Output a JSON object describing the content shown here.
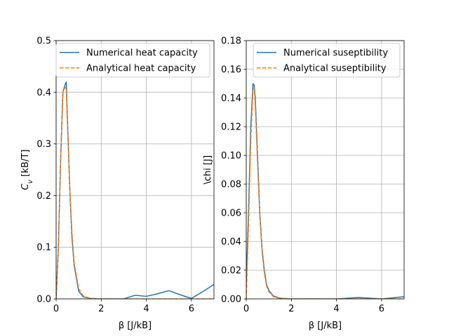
{
  "chart_data": [
    {
      "type": "line",
      "xlabel": "β [J/k_B]",
      "ylabel": "C_v [k_B/T]",
      "xlim": [
        0,
        7
      ],
      "ylim": [
        0,
        0.5
      ],
      "xticks": [
        0,
        2,
        4,
        6
      ],
      "xtick_labels": [
        "0",
        "2",
        "4",
        "6"
      ],
      "yticks": [
        0,
        0.1,
        0.2,
        0.3,
        0.4,
        0.5
      ],
      "ytick_labels": [
        "0.0",
        "0.1",
        "0.2",
        "0.3",
        "0.4",
        "0.5"
      ],
      "grid": true,
      "legend_position": "top-right",
      "series": [
        {
          "name": "Numerical heat capacity",
          "color": "#1f77b4",
          "style": "solid",
          "x": [
            0,
            0.1,
            0.2,
            0.3,
            0.4,
            0.45,
            0.5,
            0.6,
            0.7,
            0.8,
            0.9,
            1.0,
            1.2,
            1.5,
            2.0,
            2.5,
            3.0,
            3.5,
            4.0,
            4.5,
            5.0,
            5.5,
            6.0,
            6.5,
            7.0
          ],
          "y": [
            0,
            0.1,
            0.27,
            0.4,
            0.415,
            0.42,
            0.35,
            0.22,
            0.12,
            0.065,
            0.04,
            0.015,
            0.004,
            0.001,
            0.0,
            0.0,
            0.0,
            0.007,
            0.005,
            0.01,
            0.016,
            0.008,
            0.001,
            0.014,
            0.028
          ]
        },
        {
          "name": "Analytical heat capacity",
          "color": "#ff7f0e",
          "style": "dashed",
          "x": [
            0,
            0.1,
            0.2,
            0.3,
            0.4,
            0.45,
            0.5,
            0.6,
            0.7,
            0.8,
            0.9,
            1.0,
            1.2,
            1.5,
            2.0,
            3.0,
            4.0,
            5.0,
            6.0,
            7.0
          ],
          "y": [
            0,
            0.1,
            0.27,
            0.4,
            0.41,
            0.405,
            0.34,
            0.22,
            0.13,
            0.07,
            0.045,
            0.02,
            0.006,
            0.001,
            0.0,
            0.0,
            0.0,
            0.0,
            0.0,
            0.0
          ]
        }
      ]
    },
    {
      "type": "line",
      "xlabel": "β [J/k_B]",
      "ylabel": "\\chi [J]",
      "xlim": [
        0,
        7
      ],
      "ylim": [
        0,
        0.18
      ],
      "xticks": [
        0,
        2,
        4,
        6
      ],
      "xtick_labels": [
        "0",
        "2",
        "4",
        "6"
      ],
      "yticks": [
        0,
        0.02,
        0.04,
        0.06,
        0.08,
        0.1,
        0.12,
        0.14,
        0.16,
        0.18
      ],
      "ytick_labels": [
        "0.00",
        "0.02",
        "0.04",
        "0.06",
        "0.08",
        "0.10",
        "0.12",
        "0.14",
        "0.16",
        "0.18"
      ],
      "grid": true,
      "legend_position": "top-right",
      "series": [
        {
          "name": "Numerical suseptibility",
          "color": "#1f77b4",
          "style": "solid",
          "x": [
            0,
            0.1,
            0.2,
            0.3,
            0.35,
            0.4,
            0.5,
            0.6,
            0.7,
            0.8,
            0.9,
            1.0,
            1.2,
            1.5,
            2.0,
            3.0,
            4.0,
            5.0,
            6.0,
            7.0
          ],
          "y": [
            0.01,
            0.06,
            0.12,
            0.15,
            0.149,
            0.14,
            0.1,
            0.06,
            0.035,
            0.02,
            0.01,
            0.006,
            0.002,
            0.0005,
            0.0,
            0.0,
            0.0,
            0.001,
            0.0,
            0.0015
          ]
        },
        {
          "name": "Analytical suseptibility",
          "color": "#ff7f0e",
          "style": "dashed",
          "x": [
            0,
            0.1,
            0.2,
            0.3,
            0.35,
            0.4,
            0.5,
            0.6,
            0.7,
            0.8,
            0.9,
            1.0,
            1.2,
            1.5,
            2.0,
            3.0,
            4.0,
            5.0,
            6.0,
            7.0
          ],
          "y": [
            0.0,
            0.05,
            0.11,
            0.146,
            0.147,
            0.135,
            0.095,
            0.058,
            0.033,
            0.018,
            0.009,
            0.005,
            0.0015,
            0.0003,
            0.0,
            0.0,
            0.0,
            0.0,
            0.0,
            0.0
          ]
        }
      ]
    }
  ]
}
